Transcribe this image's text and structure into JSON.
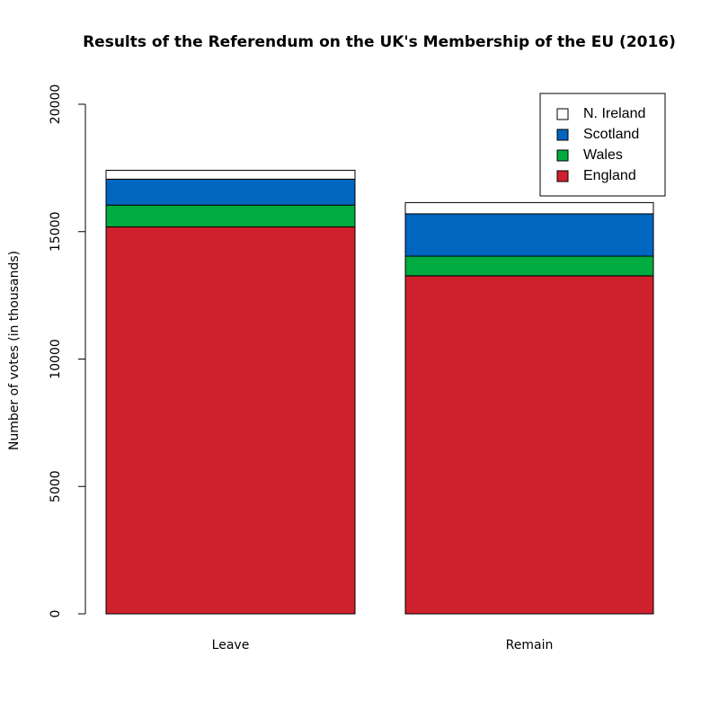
{
  "chart_data": {
    "type": "bar",
    "stacked": true,
    "title": "Results of the Referendum on the UK's Membership of the EU (2016)",
    "y_label": "Number of votes (in thousands)",
    "categories": [
      "Leave",
      "Remain"
    ],
    "series": [
      {
        "name": "England",
        "color": "#cf202e",
        "values": [
          15188,
          13266
        ]
      },
      {
        "name": "Wales",
        "color": "#00ab3f",
        "values": [
          854,
          772
        ]
      },
      {
        "name": "Scotland",
        "color": "#0066c0",
        "values": [
          1018,
          1662
        ]
      },
      {
        "name": "N. Ireland",
        "color": "#ffffff",
        "values": [
          349,
          440
        ]
      }
    ],
    "ylim": [
      0,
      20000
    ],
    "yticks": [
      0,
      5000,
      10000,
      15000,
      20000
    ],
    "legend": "topright"
  }
}
